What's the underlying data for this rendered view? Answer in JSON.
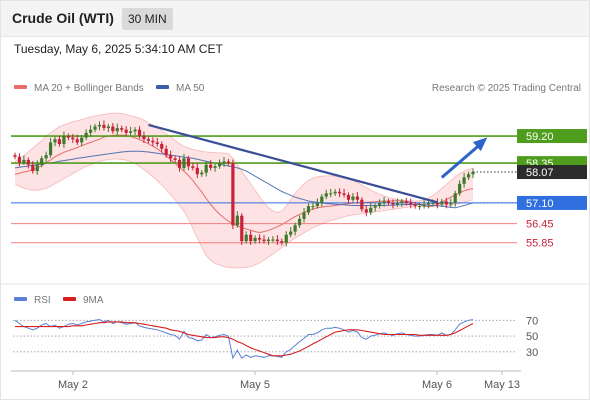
{
  "header": {
    "instrument": "Crude Oil (WTI)",
    "timeframe": "30 MIN",
    "datetime": "Tuesday, May 6, 2025 5:34:10 AM CET"
  },
  "legend": {
    "ma20_label": "MA 20 + Bollinger Bands",
    "ma50_label": "MA 50",
    "credit": "Research © 2025 Trading Central"
  },
  "colors": {
    "ma20": "#e86c6c",
    "ma50": "#3a5fa8",
    "trendline": "#3b4f96",
    "resistance_line": "#4f9d1c",
    "pivot_line": "#2f6fe0",
    "support_line": "#f08080",
    "candle": "#3d7a2a",
    "candle_down": "#c8213a",
    "rsi": "#5b7fd6",
    "rsi_ma": "#d81e1e"
  },
  "chart_data": [
    {
      "type": "candlestick",
      "title": "",
      "x_ticks": [
        "May 2",
        "May 5",
        "May 6",
        "May 13"
      ],
      "ylim": [
        54.9,
        60.3
      ],
      "levels": [
        {
          "value": 59.2,
          "label": "59.20",
          "kind": "resistance"
        },
        {
          "value": 58.35,
          "label": "58.35",
          "kind": "resistance"
        },
        {
          "value": 57.1,
          "label": "57.10",
          "kind": "pivot"
        },
        {
          "value": 56.45,
          "label": "56.45",
          "kind": "support"
        },
        {
          "value": 55.85,
          "label": "55.85",
          "kind": "support"
        }
      ],
      "last_price": {
        "value": 58.07,
        "label": "58.07"
      },
      "close": [
        58.55,
        58.37,
        58.45,
        58.3,
        58.1,
        58.3,
        58.5,
        58.6,
        59.0,
        59.1,
        58.95,
        59.2,
        59.15,
        59.1,
        59.0,
        59.15,
        59.3,
        59.4,
        59.5,
        59.55,
        59.45,
        59.5,
        59.35,
        59.45,
        59.4,
        59.3,
        59.35,
        59.4,
        59.2,
        59.1,
        59.05,
        59.0,
        58.95,
        58.8,
        58.6,
        58.5,
        58.45,
        58.2,
        58.5,
        58.25,
        58.2,
        58.0,
        58.05,
        58.3,
        58.2,
        58.25,
        58.35,
        58.4,
        58.35,
        56.4,
        56.7,
        55.9,
        56.1,
        55.9,
        56.0,
        55.95,
        55.9,
        55.95,
        55.95,
        55.9,
        55.85,
        56.1,
        56.2,
        56.4,
        56.6,
        56.8,
        57.0,
        57.0,
        57.1,
        57.3,
        57.4,
        57.4,
        57.45,
        57.4,
        57.35,
        57.2,
        57.3,
        57.2,
        56.9,
        56.8,
        56.95,
        57.0,
        57.1,
        57.15,
        57.1,
        57.05,
        57.1,
        57.15,
        57.1,
        57.05,
        57.0,
        57.0,
        57.05,
        57.1,
        57.1,
        57.05,
        57.15,
        57.05,
        57.1,
        57.4,
        57.7,
        57.9,
        58.0,
        58.07
      ],
      "ma20": [
        58.0,
        58.03,
        58.07,
        58.1,
        58.14,
        58.2,
        58.27,
        58.36,
        58.45,
        58.55,
        58.62,
        58.69,
        58.74,
        58.79,
        58.84,
        58.9,
        58.95,
        59.0,
        59.05,
        59.1,
        59.17,
        59.2,
        59.22,
        59.23,
        59.23,
        59.22,
        59.19,
        59.14,
        59.09,
        59.02,
        58.96,
        58.88,
        58.8,
        58.7,
        58.58,
        58.46,
        58.34,
        58.22,
        58.1,
        57.96,
        57.8,
        57.62,
        57.44,
        57.24,
        57.05,
        56.89,
        56.75,
        56.63,
        56.53,
        56.44,
        56.38,
        56.33,
        56.28,
        56.24,
        56.2,
        56.17,
        56.2,
        56.24,
        56.29,
        56.35,
        56.42,
        56.5,
        56.59,
        56.67,
        56.74,
        56.8,
        56.86,
        56.91,
        56.95,
        56.97,
        56.99,
        57.0,
        57.02,
        57.04,
        57.06,
        57.08,
        57.09,
        57.1,
        57.11,
        57.12,
        57.13,
        57.14,
        57.15,
        57.16,
        57.16,
        57.17,
        57.17,
        57.17,
        57.15,
        57.13,
        57.1,
        57.06,
        57.0,
        56.98,
        57.0,
        57.05,
        57.12,
        57.2,
        57.28,
        57.35,
        57.42,
        57.48,
        57.52,
        57.55
      ],
      "bb_upper": [
        58.4,
        58.5,
        58.58,
        58.7,
        58.82,
        58.94,
        59.06,
        59.2,
        59.3,
        59.4,
        59.5,
        59.55,
        59.6,
        59.65,
        59.68,
        59.72,
        59.76,
        59.8,
        59.83,
        59.86,
        59.88,
        59.9,
        59.92,
        59.92,
        59.9,
        59.88,
        59.84,
        59.8,
        59.76,
        59.7,
        59.62,
        59.55,
        59.46,
        59.37,
        59.27,
        59.17,
        59.06,
        58.96,
        58.88,
        58.82,
        58.78,
        58.75,
        58.72,
        58.7,
        58.69,
        58.68,
        58.67,
        58.66,
        58.65,
        58.5,
        58.3,
        58.1,
        57.9,
        57.7,
        57.5,
        57.3,
        57.1,
        56.95,
        56.85,
        56.8,
        56.85,
        57.0,
        57.2,
        57.4,
        57.55,
        57.7,
        57.8,
        57.88,
        57.92,
        57.94,
        57.95,
        57.95,
        57.94,
        57.92,
        57.9,
        57.86,
        57.8,
        57.74,
        57.66,
        57.58,
        57.5,
        57.44,
        57.38,
        57.32,
        57.27,
        57.24,
        57.21,
        57.19,
        57.17,
        57.16,
        57.16,
        57.17,
        57.2,
        57.26,
        57.34,
        57.44,
        57.56,
        57.68,
        57.8,
        57.92,
        58.02,
        58.1,
        58.15,
        58.2
      ],
      "bb_lower": [
        57.7,
        57.62,
        57.56,
        57.52,
        57.5,
        57.5,
        57.52,
        57.56,
        57.62,
        57.7,
        57.78,
        57.86,
        57.94,
        58.02,
        58.1,
        58.18,
        58.24,
        58.3,
        58.35,
        58.4,
        58.44,
        58.46,
        58.48,
        58.48,
        58.47,
        58.44,
        58.4,
        58.33,
        58.25,
        58.15,
        58.04,
        57.92,
        57.8,
        57.66,
        57.52,
        57.36,
        57.2,
        57.02,
        56.84,
        56.6,
        56.3,
        56.0,
        55.7,
        55.45,
        55.3,
        55.2,
        55.15,
        55.1,
        55.08,
        55.06,
        55.06,
        55.06,
        55.08,
        55.1,
        55.15,
        55.22,
        55.3,
        55.4,
        55.5,
        55.6,
        55.7,
        55.8,
        55.9,
        56.0,
        56.08,
        56.16,
        56.24,
        56.32,
        56.38,
        56.44,
        56.5,
        56.54,
        56.58,
        56.62,
        56.66,
        56.7,
        56.72,
        56.74,
        56.76,
        56.78,
        56.8,
        56.82,
        56.84,
        56.86,
        56.88,
        56.9,
        56.92,
        56.94,
        56.96,
        56.98,
        57.0,
        57.0,
        57.0,
        57.0,
        57.0,
        57.0,
        57.0,
        57.0,
        57.02,
        57.05,
        57.08,
        57.12,
        57.16,
        57.2
      ],
      "ma50": [
        58.2,
        58.22,
        58.24,
        58.26,
        58.28,
        58.3,
        58.32,
        58.34,
        58.36,
        58.38,
        58.41,
        58.43,
        58.45,
        58.47,
        58.5,
        58.52,
        58.54,
        58.56,
        58.58,
        58.6,
        58.62,
        58.64,
        58.66,
        58.68,
        58.7,
        58.71,
        58.72,
        58.72,
        58.72,
        58.71,
        58.7,
        58.68,
        58.66,
        58.64,
        58.62,
        58.6,
        58.58,
        58.56,
        58.54,
        58.52,
        58.5,
        58.47,
        58.44,
        58.41,
        58.38,
        58.35,
        58.32,
        58.29,
        58.26,
        58.23,
        58.2,
        58.16,
        58.1,
        58.02,
        57.94,
        57.86,
        57.78,
        57.7,
        57.62,
        57.54,
        57.46,
        57.4,
        57.34,
        57.28,
        57.24,
        57.2,
        57.16,
        57.14,
        57.12,
        57.1,
        57.08,
        57.07,
        57.06,
        57.05,
        57.04,
        57.03,
        57.02,
        57.02,
        57.02,
        57.02,
        57.02,
        57.02,
        57.02,
        57.02,
        57.03,
        57.03,
        57.04,
        57.04,
        57.05,
        57.05,
        57.05,
        57.05,
        57.04,
        57.03,
        57.02,
        57.01,
        57.0,
        56.98,
        56.96,
        56.95,
        56.98,
        57.02,
        57.06,
        57.1
      ],
      "trendline": {
        "from": [
          30,
          59.55
        ],
        "to": [
          95,
          57.12
        ]
      },
      "projection": {
        "from": [
          96,
          57.9
        ],
        "to": [
          106,
          59.2
        ]
      }
    },
    {
      "type": "line",
      "title": "",
      "x_ticks": [
        "May 2",
        "May 5",
        "May 6",
        "May 13"
      ],
      "ylim": [
        12,
        78
      ],
      "y_ticks": [
        70,
        50,
        30
      ],
      "series": [
        {
          "name": "RSI",
          "values": [
            70,
            66,
            62,
            60,
            58,
            60,
            64,
            66,
            62,
            64,
            60,
            62,
            65,
            66,
            64,
            66,
            68,
            69,
            70,
            71,
            68,
            70,
            66,
            68,
            67,
            65,
            66,
            67,
            63,
            61,
            60,
            59,
            58,
            56,
            54,
            52,
            51,
            46,
            56,
            48,
            47,
            44,
            45,
            52,
            48,
            49,
            51,
            52,
            50,
            22,
            32,
            22,
            26,
            23,
            25,
            24,
            23,
            25,
            25,
            24,
            23,
            30,
            33,
            38,
            43,
            47,
            52,
            52,
            54,
            58,
            60,
            60,
            61,
            60,
            58,
            55,
            57,
            55,
            48,
            46,
            50,
            51,
            53,
            54,
            52,
            51,
            53,
            54,
            52,
            51,
            50,
            50,
            51,
            52,
            52,
            51,
            54,
            51,
            52,
            58,
            65,
            68,
            70,
            71
          ]
        },
        {
          "name": "9MA",
          "values": [
            62,
            62,
            62,
            62,
            62,
            62,
            62,
            62,
            62,
            62,
            62,
            62,
            62,
            63,
            63,
            63,
            64,
            65,
            66,
            67,
            67,
            68,
            68,
            68,
            68,
            67,
            67,
            67,
            66,
            65,
            64,
            63,
            62,
            61,
            60,
            58,
            57,
            56,
            54,
            52,
            51,
            50,
            49,
            48,
            48,
            48,
            49,
            49,
            48,
            46,
            43,
            41,
            38,
            35,
            33,
            31,
            29,
            27,
            25,
            25,
            25,
            26,
            27,
            29,
            31,
            34,
            37,
            40,
            43,
            46,
            49,
            52,
            55,
            56,
            57,
            58,
            58,
            58,
            57,
            56,
            55,
            54,
            53,
            52,
            52,
            52,
            52,
            52,
            52,
            52,
            52,
            51,
            51,
            51,
            51,
            51,
            51,
            51,
            52,
            54,
            57,
            60,
            63,
            66
          ]
        }
      ]
    }
  ]
}
